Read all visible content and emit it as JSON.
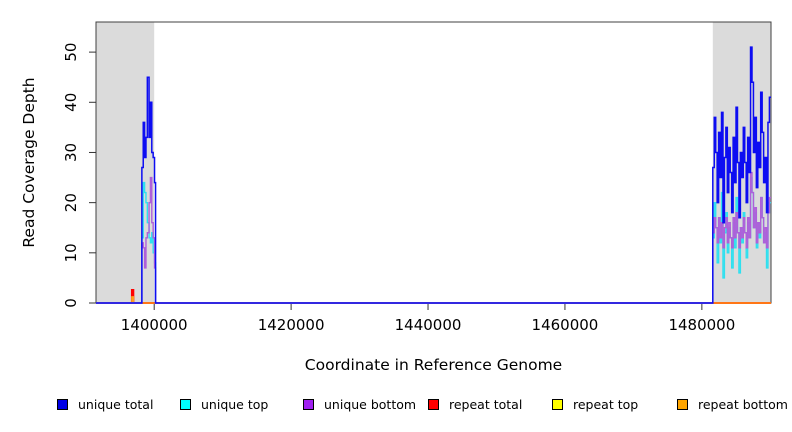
{
  "chart_data": {
    "type": "line",
    "step_interpolation": true,
    "title": "",
    "xlabel": "Coordinate in Reference Genome",
    "ylabel": "Read Coverage Depth",
    "xlim": [
      1391500,
      1490100
    ],
    "ylim": [
      0,
      56
    ],
    "xticks": [
      1400000,
      1420000,
      1440000,
      1460000,
      1480000
    ],
    "xtick_labels": [
      "1400000",
      "1420000",
      "1440000",
      "1460000",
      "1480000"
    ],
    "yticks": [
      0,
      10,
      20,
      30,
      40,
      50
    ],
    "ytick_labels": [
      "0",
      "10",
      "20",
      "30",
      "40",
      "50"
    ],
    "grid": false,
    "legend_position": "bottom",
    "plot_border_color": "#404040",
    "shaded_regions": [
      {
        "from": 1391500,
        "to": 1400000,
        "color": "#DBDBDB"
      },
      {
        "from": 1481600,
        "to": 1490100,
        "color": "#DBDBDB"
      }
    ],
    "series": [
      {
        "id": "repeat-top",
        "name": "repeat top",
        "color": "#FFFF00",
        "width": 1,
        "points": [
          [
            1391500,
            0
          ],
          [
            1490100,
            0
          ]
        ]
      },
      {
        "id": "repeat-total",
        "name": "repeat total",
        "color": "#FF0000",
        "width": 2,
        "points": [
          [
            1391500,
            0
          ],
          [
            1396500,
            0
          ],
          [
            1396750,
            2.6
          ],
          [
            1396950,
            0
          ],
          [
            1490100,
            0
          ]
        ]
      },
      {
        "id": "repeat-bottom",
        "name": "repeat bottom",
        "color": "#FF9E1E",
        "width": 1.6,
        "points": [
          [
            1391500,
            0
          ],
          [
            1396500,
            0
          ],
          [
            1396750,
            1.2
          ],
          [
            1396950,
            0
          ],
          [
            1490100,
            0
          ]
        ]
      },
      {
        "id": "unique-top",
        "name": "unique top",
        "color": "#2FE0EF",
        "width": 1.4,
        "points": [
          [
            1391500,
            0
          ],
          [
            1398050,
            0
          ],
          [
            1398200,
            13
          ],
          [
            1398400,
            24
          ],
          [
            1398600,
            22
          ],
          [
            1398800,
            20
          ],
          [
            1399000,
            16
          ],
          [
            1399250,
            13
          ],
          [
            1399450,
            12
          ],
          [
            1399650,
            14
          ],
          [
            1399850,
            10
          ],
          [
            1400050,
            8
          ],
          [
            1400200,
            0
          ],
          [
            1481388,
            0
          ],
          [
            1481600,
            13
          ],
          [
            1481812,
            20
          ],
          [
            1482024,
            15
          ],
          [
            1482236,
            8
          ],
          [
            1482448,
            17
          ],
          [
            1482660,
            12
          ],
          [
            1482872,
            22
          ],
          [
            1483084,
            5
          ],
          [
            1483296,
            14
          ],
          [
            1483508,
            18
          ],
          [
            1483720,
            10
          ],
          [
            1483932,
            15
          ],
          [
            1484144,
            13
          ],
          [
            1484356,
            7
          ],
          [
            1484568,
            16
          ],
          [
            1484780,
            11
          ],
          [
            1484992,
            21
          ],
          [
            1485204,
            14
          ],
          [
            1485416,
            6
          ],
          [
            1485628,
            15
          ],
          [
            1485840,
            12
          ],
          [
            1486052,
            18
          ],
          [
            1486264,
            14
          ],
          [
            1486476,
            9
          ],
          [
            1486688,
            16
          ],
          [
            1486900,
            13
          ],
          [
            1487112,
            25
          ],
          [
            1487324,
            22
          ],
          [
            1487536,
            15
          ],
          [
            1487748,
            18
          ],
          [
            1487960,
            11
          ],
          [
            1488172,
            16
          ],
          [
            1488384,
            13
          ],
          [
            1488596,
            21
          ],
          [
            1488808,
            17
          ],
          [
            1489020,
            12
          ],
          [
            1489232,
            14
          ],
          [
            1489444,
            7
          ],
          [
            1489656,
            18
          ],
          [
            1489868,
            20
          ],
          [
            1490100,
            20
          ]
        ]
      },
      {
        "id": "unique-bottom",
        "name": "unique bottom",
        "color": "#AF5FD9",
        "width": 1.4,
        "points": [
          [
            1391500,
            0
          ],
          [
            1398050,
            0
          ],
          [
            1398200,
            12
          ],
          [
            1398400,
            11
          ],
          [
            1398600,
            7
          ],
          [
            1398800,
            13
          ],
          [
            1399000,
            14
          ],
          [
            1399250,
            20
          ],
          [
            1399450,
            25
          ],
          [
            1399650,
            16
          ],
          [
            1399850,
            13
          ],
          [
            1400050,
            7
          ],
          [
            1400200,
            0
          ],
          [
            1481388,
            0
          ],
          [
            1481600,
            14
          ],
          [
            1481812,
            17
          ],
          [
            1482024,
            15
          ],
          [
            1482236,
            12
          ],
          [
            1482448,
            17
          ],
          [
            1482660,
            13
          ],
          [
            1482872,
            16
          ],
          [
            1483084,
            11
          ],
          [
            1483296,
            15
          ],
          [
            1483508,
            17
          ],
          [
            1483720,
            12
          ],
          [
            1483932,
            16
          ],
          [
            1484144,
            13
          ],
          [
            1484356,
            11
          ],
          [
            1484568,
            17
          ],
          [
            1484780,
            13
          ],
          [
            1484992,
            18
          ],
          [
            1485204,
            14
          ],
          [
            1485416,
            11
          ],
          [
            1485628,
            15
          ],
          [
            1485840,
            13
          ],
          [
            1486052,
            17
          ],
          [
            1486264,
            14
          ],
          [
            1486476,
            11
          ],
          [
            1486688,
            17
          ],
          [
            1486900,
            13
          ],
          [
            1487112,
            26
          ],
          [
            1487324,
            22
          ],
          [
            1487536,
            15
          ],
          [
            1487748,
            19
          ],
          [
            1487960,
            12
          ],
          [
            1488172,
            16
          ],
          [
            1488384,
            14
          ],
          [
            1488596,
            21
          ],
          [
            1488808,
            17
          ],
          [
            1489020,
            12
          ],
          [
            1489232,
            15
          ],
          [
            1489444,
            11
          ],
          [
            1489656,
            18
          ],
          [
            1489868,
            21
          ],
          [
            1490100,
            21
          ]
        ]
      },
      {
        "id": "unique-total",
        "name": "unique total",
        "color": "#0D0DF2",
        "width": 1.5,
        "points": [
          [
            1391500,
            0
          ],
          [
            1398050,
            0
          ],
          [
            1398200,
            27
          ],
          [
            1398400,
            36
          ],
          [
            1398600,
            29
          ],
          [
            1398800,
            33
          ],
          [
            1399000,
            45
          ],
          [
            1399250,
            33
          ],
          [
            1399450,
            40
          ],
          [
            1399650,
            30
          ],
          [
            1399850,
            29
          ],
          [
            1400050,
            24
          ],
          [
            1400200,
            0
          ],
          [
            1481388,
            0
          ],
          [
            1481600,
            27
          ],
          [
            1481812,
            37
          ],
          [
            1482024,
            30
          ],
          [
            1482236,
            20
          ],
          [
            1482448,
            34
          ],
          [
            1482660,
            25
          ],
          [
            1482872,
            38
          ],
          [
            1483084,
            16
          ],
          [
            1483296,
            29
          ],
          [
            1483508,
            35
          ],
          [
            1483720,
            22
          ],
          [
            1483932,
            31
          ],
          [
            1484144,
            26
          ],
          [
            1484356,
            18
          ],
          [
            1484568,
            33
          ],
          [
            1484780,
            24
          ],
          [
            1484992,
            39
          ],
          [
            1485204,
            28
          ],
          [
            1485416,
            17
          ],
          [
            1485628,
            30
          ],
          [
            1485840,
            25
          ],
          [
            1486052,
            35
          ],
          [
            1486264,
            28
          ],
          [
            1486476,
            20
          ],
          [
            1486688,
            33
          ],
          [
            1486900,
            26
          ],
          [
            1487112,
            51
          ],
          [
            1487324,
            44
          ],
          [
            1487536,
            30
          ],
          [
            1487748,
            37
          ],
          [
            1487960,
            23
          ],
          [
            1488172,
            32
          ],
          [
            1488384,
            27
          ],
          [
            1488596,
            42
          ],
          [
            1488808,
            34
          ],
          [
            1489020,
            24
          ],
          [
            1489232,
            29
          ],
          [
            1489444,
            18
          ],
          [
            1489656,
            36
          ],
          [
            1489868,
            41
          ],
          [
            1490100,
            41
          ]
        ]
      }
    ]
  },
  "legend": {
    "items": [
      {
        "id": "unique-total",
        "label": "unique total",
        "color": "#0000E6"
      },
      {
        "id": "unique-top",
        "label": "unique top",
        "color": "#00FFFF"
      },
      {
        "id": "unique-bottom",
        "label": "unique bottom",
        "color": "#A020F0"
      },
      {
        "id": "repeat-total",
        "label": "repeat total",
        "color": "#FF0000"
      },
      {
        "id": "repeat-top",
        "label": "repeat top",
        "color": "#FFFF00"
      },
      {
        "id": "repeat-bottom",
        "label": "repeat bottom",
        "color": "#FFA500"
      }
    ]
  }
}
